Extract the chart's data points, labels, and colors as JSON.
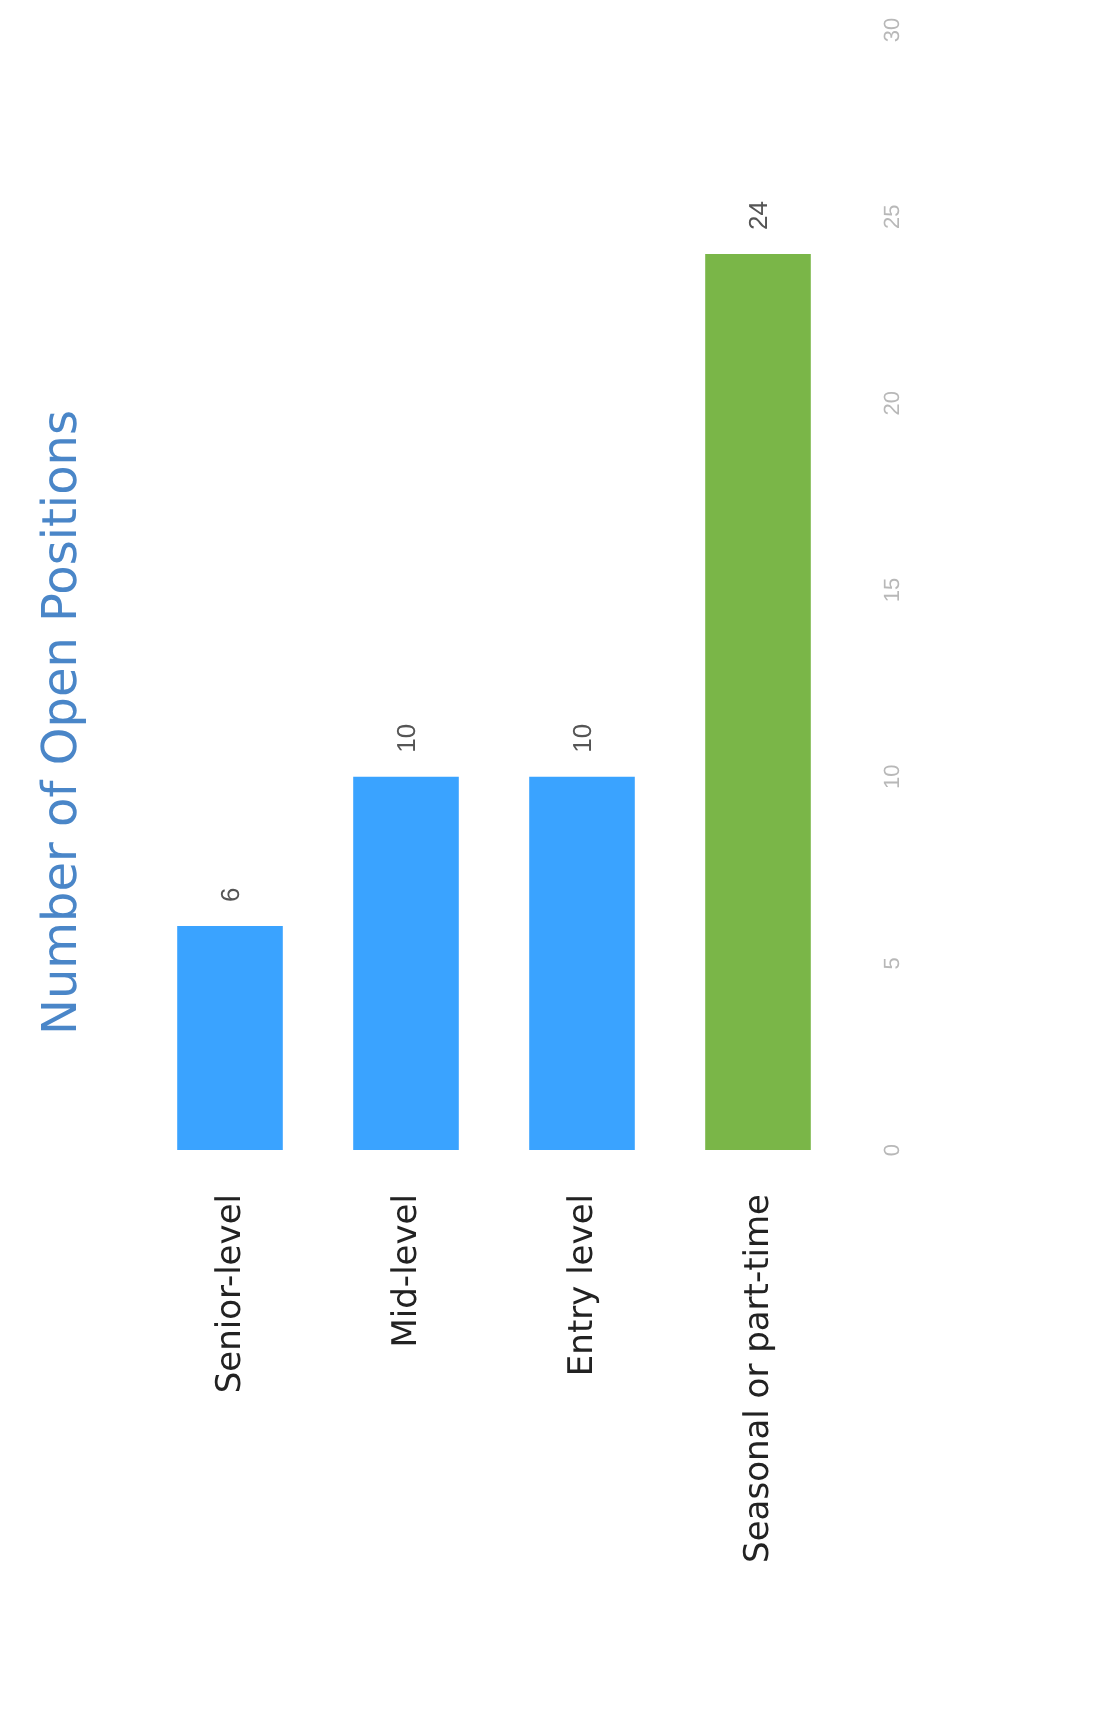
{
  "chart_data": {
    "type": "bar",
    "title": "Number of Open Positions",
    "categories": [
      "Senior-level",
      "Mid-level",
      "Entry level",
      "Seasonal or part-time"
    ],
    "values": [
      6,
      10,
      10,
      24
    ],
    "colors": [
      "#3aa3ff",
      "#3aa3ff",
      "#3aa3ff",
      "#7ab648"
    ],
    "ylim": [
      0,
      30
    ],
    "yticks": [
      0,
      5,
      10,
      15,
      20,
      25,
      30
    ],
    "data_labels": true,
    "grid": false
  }
}
